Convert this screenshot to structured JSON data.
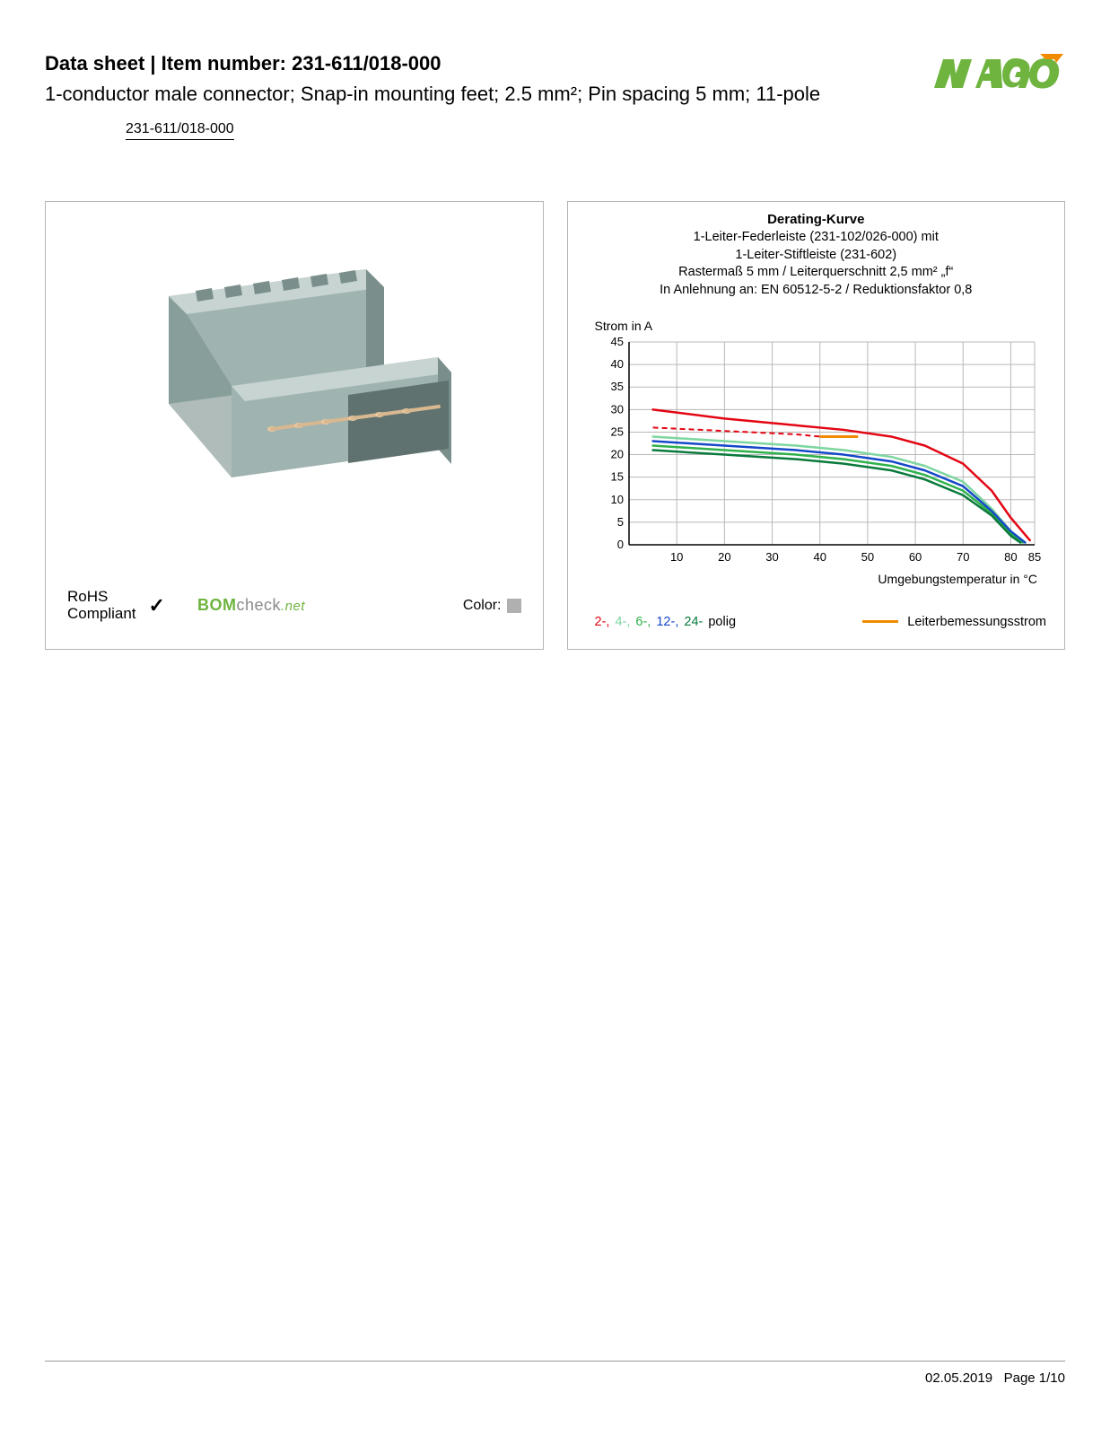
{
  "header": {
    "title_prefix": "Data sheet  |  Item number: ",
    "item_number": "231-611/018-000",
    "subtitle": "1-conductor male connector; Snap-in mounting feet; 2.5 mm²; Pin spacing 5 mm; 11-pole",
    "item_link": "231-611/018-000"
  },
  "logo": {
    "text": "WAGO",
    "fill": "#6eb43f",
    "accent": "#f08a00"
  },
  "product_panel": {
    "connector_body_color": "#9fb3b0",
    "connector_shadow_color": "#7a8f8c",
    "rohs_label": "RoHS\nCompliant",
    "bomcheck_label_bom": "BOM",
    "bomcheck_label_check": "check",
    "bomcheck_label_net": ".net",
    "bomcheck_gray": "#8a8a8a",
    "color_label": "Color:",
    "color_swatch": "#b0b0b0"
  },
  "chart": {
    "title": "Derating-Kurve",
    "sub1": "1-Leiter-Federleiste (231-102/026-000) mit",
    "sub2": "1-Leiter-Stiftleiste (231-602)",
    "sub3": "Rastermaß 5 mm / Leiterquerschnitt 2,5 mm² „f“",
    "sub4": "In Anlehnung an: EN 60512-5-2 / Reduktionsfaktor 0,8",
    "ylabel": "Strom in A",
    "xlabel": "Umgebungstemperatur in °C",
    "xlim": [
      0,
      85
    ],
    "ylim": [
      0,
      45
    ],
    "xtick_step": 10,
    "xtick_extra": 85,
    "ytick_step": 5,
    "grid_color": "#b8b8b8",
    "axis_color": "#000000",
    "background": "#ffffff",
    "line_width": 2.5,
    "series": [
      {
        "name": "2-polig",
        "color": "#e30613",
        "points": [
          [
            5,
            30
          ],
          [
            20,
            28
          ],
          [
            35,
            26.5
          ],
          [
            45,
            25.5
          ],
          [
            55,
            24
          ],
          [
            62,
            22
          ],
          [
            70,
            18
          ],
          [
            76,
            12
          ],
          [
            80,
            6
          ],
          [
            84,
            1
          ]
        ]
      },
      {
        "name": "4-polig",
        "color": "#7ed6a0",
        "points": [
          [
            5,
            24
          ],
          [
            20,
            23
          ],
          [
            35,
            22
          ],
          [
            45,
            21
          ],
          [
            55,
            19.5
          ],
          [
            62,
            17.5
          ],
          [
            70,
            14
          ],
          [
            76,
            8
          ],
          [
            80,
            3
          ],
          [
            83,
            0.5
          ]
        ]
      },
      {
        "name": "6-polig",
        "color": "#2fb24c",
        "points": [
          [
            5,
            22
          ],
          [
            20,
            21
          ],
          [
            35,
            20
          ],
          [
            45,
            19
          ],
          [
            55,
            17.5
          ],
          [
            62,
            15.5
          ],
          [
            70,
            12
          ],
          [
            76,
            7
          ],
          [
            80,
            2.5
          ],
          [
            82.5,
            0.5
          ]
        ]
      },
      {
        "name": "12-polig",
        "color": "#1548c9",
        "points": [
          [
            5,
            23
          ],
          [
            20,
            22
          ],
          [
            35,
            21
          ],
          [
            45,
            20
          ],
          [
            55,
            18.5
          ],
          [
            62,
            16.5
          ],
          [
            70,
            13
          ],
          [
            76,
            7.5
          ],
          [
            80,
            3
          ],
          [
            83,
            0.5
          ]
        ]
      },
      {
        "name": "24-polig",
        "color": "#0a7a3c",
        "points": [
          [
            5,
            21
          ],
          [
            20,
            20
          ],
          [
            35,
            19
          ],
          [
            45,
            18
          ],
          [
            55,
            16.5
          ],
          [
            62,
            14.5
          ],
          [
            70,
            11
          ],
          [
            76,
            6.5
          ],
          [
            80,
            2
          ],
          [
            82,
            0.5
          ]
        ]
      }
    ],
    "dashed_series": {
      "color": "#e30613",
      "dash": "6,4",
      "points": [
        [
          5,
          26
        ],
        [
          15,
          25.5
        ],
        [
          25,
          25
        ],
        [
          35,
          24.5
        ],
        [
          40,
          24
        ]
      ]
    },
    "rated_current": {
      "color": "#f08a00",
      "points": [
        [
          40,
          24
        ],
        [
          48,
          24
        ]
      ],
      "width": 3
    },
    "legend_poles": {
      "items": [
        {
          "label": "2-",
          "color": "#e30613"
        },
        {
          "label": "4-",
          "color": "#7ed6a0"
        },
        {
          "label": "6-",
          "color": "#2fb24c"
        },
        {
          "label": "12-",
          "color": "#1548c9"
        },
        {
          "label": "24-",
          "color": "#0a7a3c"
        }
      ],
      "suffix": " polig"
    },
    "legend_current": {
      "swatch_color": "#f08a00",
      "label": "Leiterbemessungsstrom"
    },
    "tick_fontsize": 13
  },
  "footer": {
    "date": "02.05.2019",
    "page": "Page 1/10"
  }
}
